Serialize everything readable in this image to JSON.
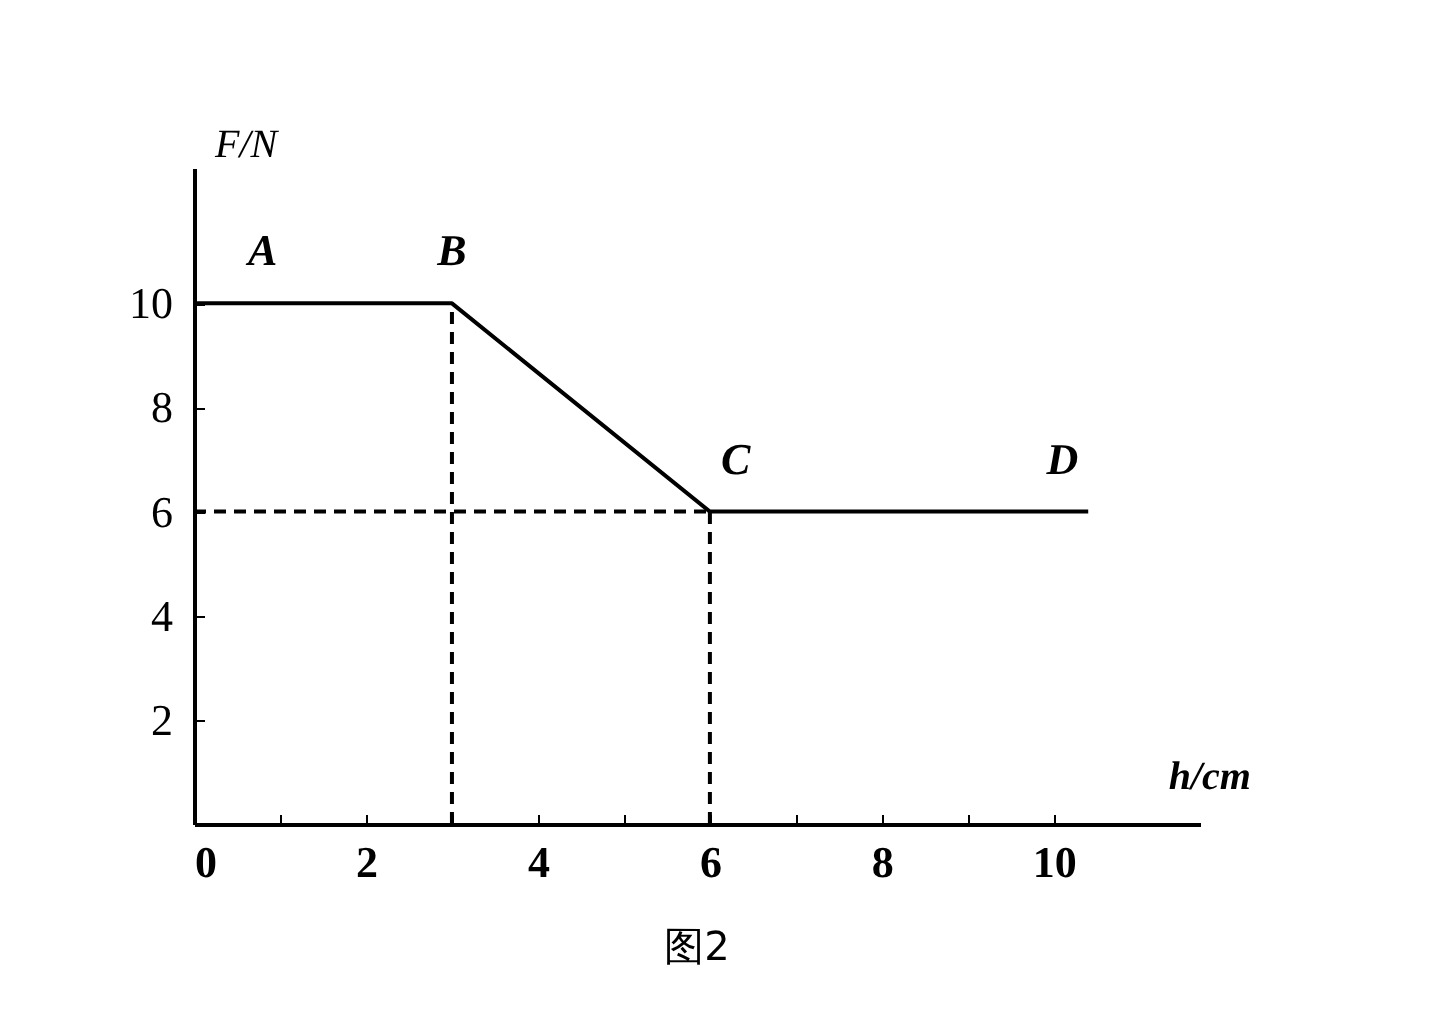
{
  "chart_data": {
    "type": "line",
    "title": "图2",
    "xlabel": "h/cm",
    "ylabel": "F/N",
    "xlim": [
      0,
      11.7
    ],
    "ylim": [
      0,
      12.6
    ],
    "xticks": [
      0,
      {
        "value": 1,
        "label": null
      },
      2,
      {
        "value": 3,
        "label": null
      },
      4,
      {
        "value": 5,
        "label": null
      },
      6,
      {
        "value": 7,
        "label": null
      },
      8,
      {
        "value": 9,
        "label": null
      },
      10
    ],
    "yticks": [
      2,
      4,
      6,
      8,
      10
    ],
    "grid": false,
    "marker": "none",
    "series": [
      {
        "color": "#000000",
        "x": [
          0,
          3,
          6,
          10.4
        ],
        "values": [
          10,
          10,
          6,
          6
        ],
        "line_style": "solid"
      },
      {
        "color": "#000000",
        "x": [
          3,
          3
        ],
        "values": [
          0,
          10
        ],
        "line_style": "dashed"
      },
      {
        "color": "#000000",
        "x": [
          6,
          6
        ],
        "values": [
          0,
          6
        ],
        "line_style": "dashed"
      },
      {
        "color": "#000000",
        "x": [
          0,
          6
        ],
        "values": [
          6,
          6
        ],
        "line_style": "dashed"
      }
    ],
    "annotations": [
      {
        "text": "A",
        "x": 0.8,
        "y": 10
      },
      {
        "text": "B",
        "x": 3,
        "y": 10
      },
      {
        "text": "C",
        "x": 6.3,
        "y": 6
      },
      {
        "text": "D",
        "x": 10.1,
        "y": 6
      }
    ]
  }
}
